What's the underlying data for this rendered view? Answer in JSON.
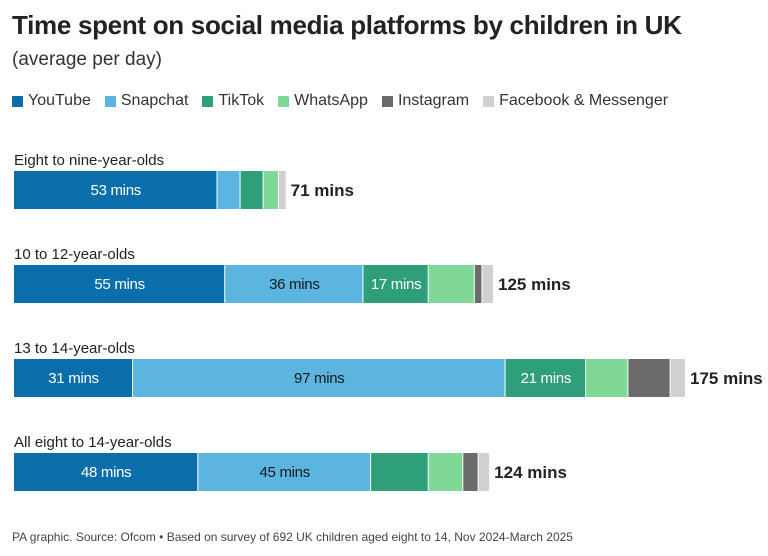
{
  "title": "Time spent on social media platforms by children in UK",
  "subtitle": "(average per day)",
  "source": "PA graphic. Source: Ofcom • Based on survey of 692 UK children aged eight to 14, Nov 2024-March 2025",
  "chart_data": {
    "type": "bar",
    "orientation": "horizontal",
    "stacked": true,
    "unit": "mins",
    "legend_position": "top",
    "series": [
      {
        "name": "YouTube",
        "color": "#0a6eab"
      },
      {
        "name": "Snapchat",
        "color": "#5bb5de"
      },
      {
        "name": "TikTok",
        "color": "#2f9e7a"
      },
      {
        "name": "WhatsApp",
        "color": "#7fd896"
      },
      {
        "name": "Instagram",
        "color": "#6b6b6b"
      },
      {
        "name": "Facebook & Messenger",
        "color": "#d0d0d0"
      }
    ],
    "groups": [
      {
        "label": "Eight to nine-year-olds",
        "values": [
          53,
          6,
          6,
          4,
          0,
          2
        ],
        "segment_labels": [
          "53 mins",
          "",
          "",
          "",
          "",
          ""
        ],
        "total": 71,
        "total_label": "71 mins"
      },
      {
        "label": "10 to 12-year-olds",
        "values": [
          55,
          36,
          17,
          12,
          2,
          3
        ],
        "segment_labels": [
          "55 mins",
          "36 mins",
          "17 mins",
          "",
          "",
          ""
        ],
        "total": 125,
        "total_label": "125 mins"
      },
      {
        "label": "13 to 14-year-olds",
        "values": [
          31,
          97,
          21,
          11,
          11,
          4
        ],
        "segment_labels": [
          "31 mins",
          "97 mins",
          "21 mins",
          "",
          "",
          ""
        ],
        "total": 175,
        "total_label": "175 mins"
      },
      {
        "label": "All eight to 14-year-olds",
        "values": [
          48,
          45,
          15,
          9,
          4,
          3
        ],
        "segment_labels": [
          "48 mins",
          "45 mins",
          "",
          "",
          "",
          ""
        ],
        "total": 124,
        "total_label": "124 mins"
      }
    ]
  }
}
